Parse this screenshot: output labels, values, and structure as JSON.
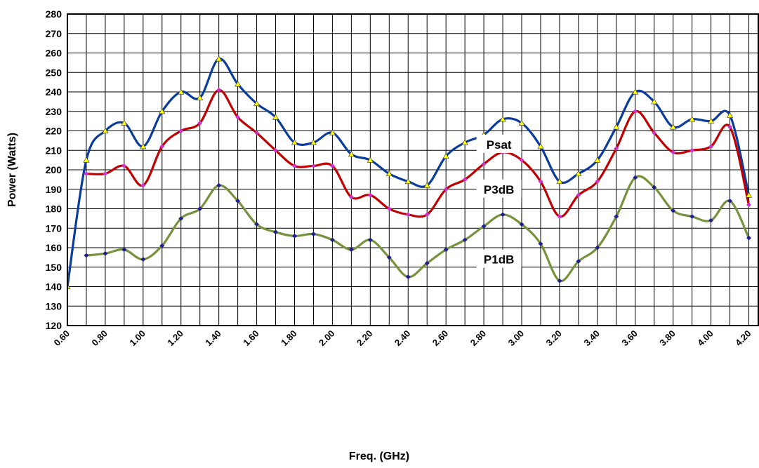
{
  "chart_data": {
    "type": "line",
    "title": "",
    "xlabel": "Freq. (GHz)",
    "ylabel": "Power (Watts)",
    "ylim": [
      120,
      280
    ],
    "xlim": [
      0.6,
      4.25
    ],
    "grid": true,
    "yticks": [
      "120",
      "130",
      "140",
      "150",
      "160",
      "170",
      "180",
      "190",
      "200",
      "210",
      "220",
      "230",
      "240",
      "250",
      "260",
      "270",
      "280"
    ],
    "xticks": [
      "0.60",
      "0.80",
      "1.00",
      "1.20",
      "1.40",
      "1.60",
      "1.80",
      "2.00",
      "2.20",
      "2.40",
      "2.60",
      "2.80",
      "3.00",
      "3.20",
      "3.40",
      "3.60",
      "3.80",
      "4.00",
      "4.20"
    ],
    "series": [
      {
        "name": "Psat",
        "color": "#0a3c9e",
        "marker": "triangle",
        "marker_color": "#ffff00",
        "x": [
          0.6,
          0.7,
          0.8,
          0.9,
          1.0,
          1.1,
          1.2,
          1.3,
          1.4,
          1.5,
          1.6,
          1.7,
          1.8,
          1.9,
          2.0,
          2.1,
          2.2,
          2.3,
          2.4,
          2.5,
          2.6,
          2.7,
          2.8,
          2.9,
          3.0,
          3.1,
          3.2,
          3.3,
          3.4,
          3.5,
          3.6,
          3.7,
          3.8,
          3.9,
          4.0,
          4.1,
          4.2
        ],
        "values": [
          140,
          205,
          220,
          224,
          212,
          230,
          240,
          237,
          257,
          244,
          234,
          227,
          214,
          214,
          219,
          208,
          205,
          198,
          194,
          192,
          207,
          214,
          218,
          226,
          224,
          212,
          194,
          198,
          205,
          222,
          240,
          235,
          222,
          226,
          225,
          228,
          187
        ]
      },
      {
        "name": "P3dB",
        "color": "#c00000",
        "marker": "diamond",
        "marker_color": "#cc33cc",
        "x": [
          0.7,
          0.8,
          0.9,
          1.0,
          1.1,
          1.2,
          1.3,
          1.4,
          1.5,
          1.6,
          1.7,
          1.8,
          1.9,
          2.0,
          2.1,
          2.2,
          2.3,
          2.4,
          2.5,
          2.6,
          2.7,
          2.8,
          2.9,
          3.0,
          3.1,
          3.2,
          3.3,
          3.4,
          3.5,
          3.6,
          3.7,
          3.8,
          3.9,
          4.0,
          4.1,
          4.2
        ],
        "values": [
          198,
          198,
          202,
          192,
          212,
          220,
          224,
          241,
          227,
          219,
          210,
          202,
          202,
          202,
          186,
          187,
          180,
          177,
          177,
          190,
          195,
          203,
          209,
          205,
          194,
          176,
          187,
          194,
          211,
          230,
          219,
          209,
          210,
          212,
          222,
          182
        ]
      },
      {
        "name": "P1dB",
        "color": "#76923c",
        "marker": "diamond",
        "marker_color": "#1f1f8f",
        "x": [
          0.7,
          0.8,
          0.9,
          1.0,
          1.1,
          1.2,
          1.3,
          1.4,
          1.5,
          1.6,
          1.7,
          1.8,
          1.9,
          2.0,
          2.1,
          2.2,
          2.3,
          2.4,
          2.5,
          2.6,
          2.7,
          2.8,
          2.9,
          3.0,
          3.1,
          3.2,
          3.3,
          3.4,
          3.5,
          3.6,
          3.7,
          3.8,
          3.9,
          4.0,
          4.1,
          4.2
        ],
        "values": [
          156,
          157,
          159,
          154,
          161,
          175,
          180,
          192,
          184,
          172,
          168,
          166,
          167,
          164,
          159,
          164,
          155,
          145,
          152,
          159,
          164,
          171,
          177,
          172,
          162,
          143,
          153,
          160,
          176,
          196,
          191,
          179,
          176,
          174,
          184,
          165
        ]
      }
    ],
    "annotations": [
      {
        "text": "Psat",
        "x": 2.88,
        "y": 213
      },
      {
        "text": "P3dB",
        "x": 2.88,
        "y": 190
      },
      {
        "text": "P1dB",
        "x": 2.88,
        "y": 154
      }
    ]
  }
}
